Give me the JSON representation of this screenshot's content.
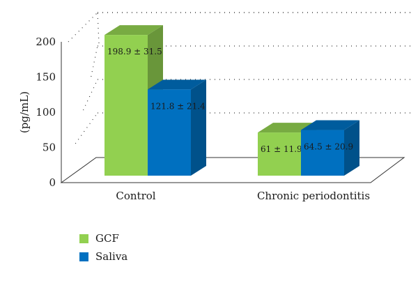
{
  "chart_data": {
    "type": "bar",
    "title": "",
    "xlabel": "",
    "ylabel": "(pg/mL)",
    "ylim": [
      0,
      200
    ],
    "yticks": [
      0,
      50,
      100,
      150,
      200
    ],
    "grid": true,
    "three_d": true,
    "legend_position": "bottom-left",
    "categories": [
      "Control",
      "Chronic periodontitis"
    ],
    "series": [
      {
        "name": "GCF",
        "color": "#92d050",
        "values": [
          198.9,
          61
        ],
        "labels": [
          "198.9 ± 31.5",
          "61 ± 11.9"
        ]
      },
      {
        "name": "Saliva",
        "color": "#0070c0",
        "values": [
          121.8,
          64.5
        ],
        "labels": [
          "121.8 ± 21.4",
          "64.5 ± 20.9"
        ]
      }
    ]
  }
}
